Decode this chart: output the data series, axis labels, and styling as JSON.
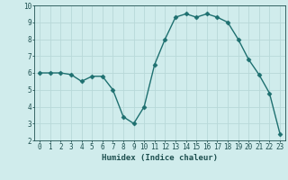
{
  "x": [
    0,
    1,
    2,
    3,
    4,
    5,
    6,
    7,
    8,
    9,
    10,
    11,
    12,
    13,
    14,
    15,
    16,
    17,
    18,
    19,
    20,
    21,
    22,
    23
  ],
  "y": [
    6.0,
    6.0,
    6.0,
    5.9,
    5.5,
    5.8,
    5.8,
    5.0,
    3.4,
    3.0,
    4.0,
    6.5,
    8.0,
    9.3,
    9.5,
    9.3,
    9.5,
    9.3,
    9.0,
    8.0,
    6.8,
    5.9,
    4.8,
    2.4
  ],
  "xlabel": "Humidex (Indice chaleur)",
  "ylim": [
    2,
    10
  ],
  "xlim": [
    -0.5,
    23.5
  ],
  "yticks": [
    2,
    3,
    4,
    5,
    6,
    7,
    8,
    9,
    10
  ],
  "xticks": [
    0,
    1,
    2,
    3,
    4,
    5,
    6,
    7,
    8,
    9,
    10,
    11,
    12,
    13,
    14,
    15,
    16,
    17,
    18,
    19,
    20,
    21,
    22,
    23
  ],
  "line_color": "#1e7070",
  "marker_color": "#1e7070",
  "bg_color": "#d0ecec",
  "grid_color": "#b8d8d8",
  "tick_label_color": "#1e5050",
  "axis_label_color": "#1e5050",
  "xlabel_fontsize": 6.5,
  "tick_fontsize": 5.5,
  "linewidth": 1.0,
  "markersize": 2.5
}
